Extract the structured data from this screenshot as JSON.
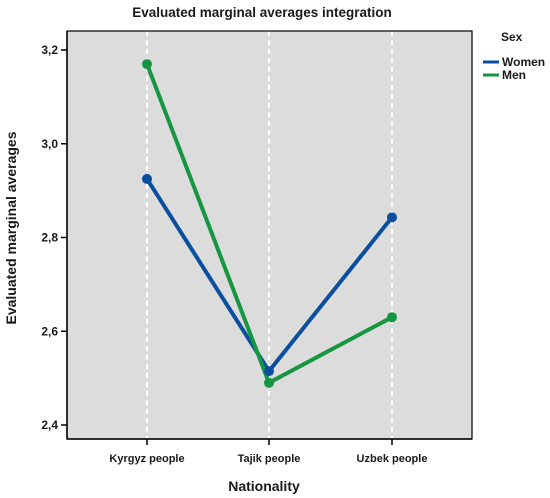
{
  "chart_data": {
    "type": "line",
    "title": "Evaluated marginal averages integration",
    "xlabel": "Nationality",
    "ylabel": "Evaluated marginal averages",
    "categories": [
      "Kyrgyz people",
      "Tajik people",
      "Uzbek people"
    ],
    "y_ticks": [
      "2,4",
      "2,6",
      "2,8",
      "3,0",
      "3,2"
    ],
    "ylim": [
      2.4,
      3.25
    ],
    "legend_title": "Sex",
    "legend_position": "top-right, outside plot",
    "grid": "vertical dashed white lines at categories",
    "plot_background": "#dcdcdc",
    "series": [
      {
        "name": "Women",
        "color": "#0a4f9e",
        "values": [
          2.925,
          2.515,
          2.843
        ]
      },
      {
        "name": "Men",
        "color": "#179642",
        "values": [
          3.17,
          2.49,
          2.63
        ]
      }
    ]
  }
}
